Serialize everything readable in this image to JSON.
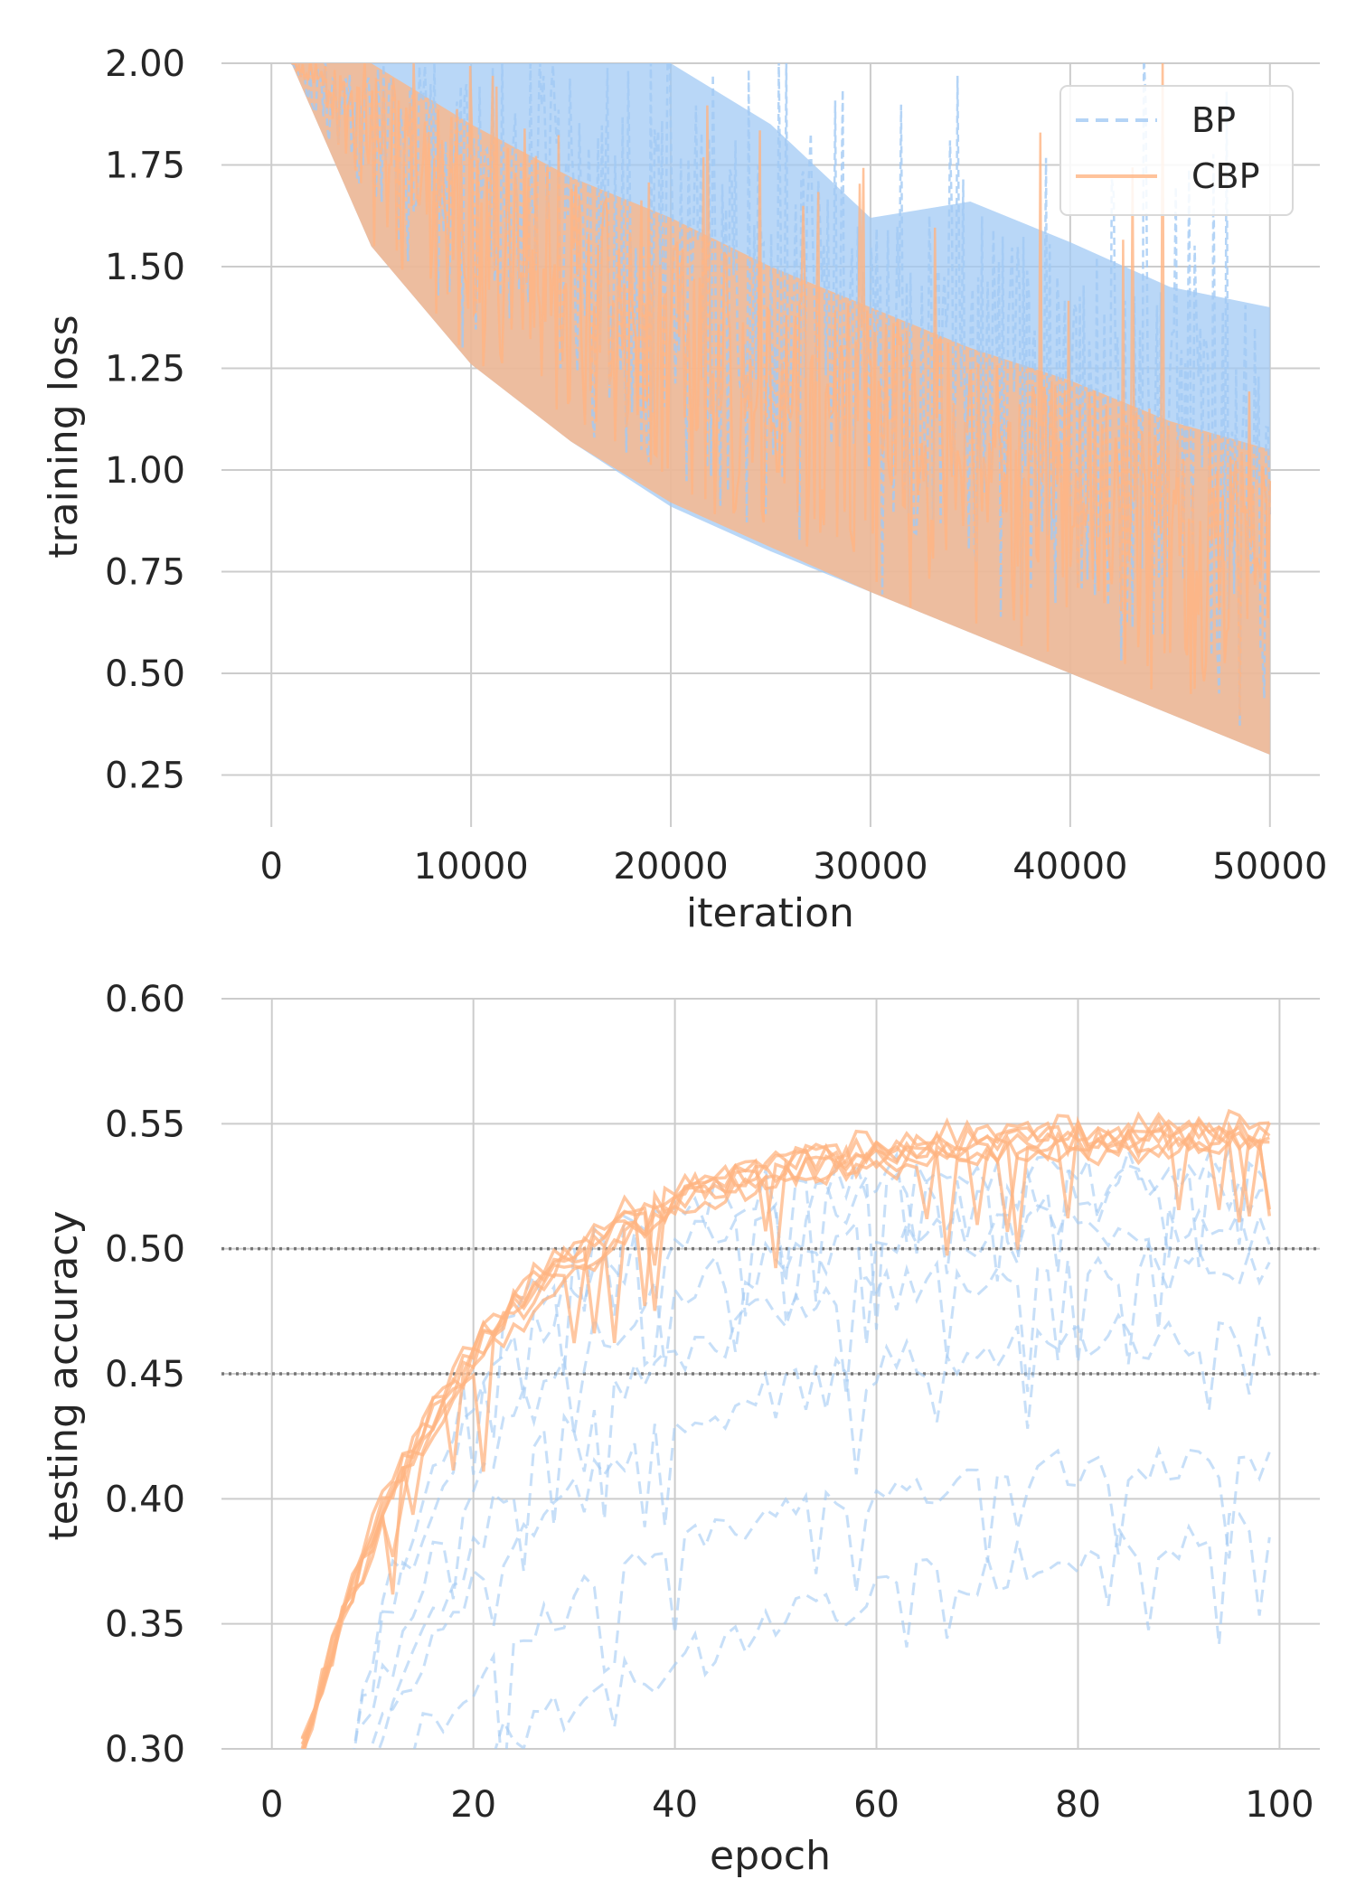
{
  "chart_data": [
    {
      "type": "line",
      "title": "",
      "xlabel": "iteration",
      "ylabel": "training loss",
      "xlim": [
        -2500,
        52500
      ],
      "ylim": [
        0.2,
        2.0
      ],
      "xticks": [
        0,
        10000,
        20000,
        30000,
        40000,
        50000
      ],
      "xtick_labels": [
        "0",
        "10000",
        "20000",
        "30000",
        "40000",
        "50000"
      ],
      "yticks": [
        0.25,
        0.5,
        0.75,
        1.0,
        1.25,
        1.5,
        1.75,
        2.0
      ],
      "ytick_labels": [
        "0.25",
        "0.50",
        "0.75",
        "1.00",
        "1.25",
        "1.50",
        "1.75",
        "2.00"
      ],
      "grid": true,
      "legend": {
        "placement": "top-right",
        "entries": [
          {
            "label": "BP",
            "color": "#a1c9f4",
            "style": "dashed"
          },
          {
            "label": "CBP",
            "color": "#ffb482",
            "style": "solid"
          }
        ]
      },
      "series": [
        {
          "name": "BP",
          "color": "#a1c9f4",
          "style": "dashed",
          "x": [
            1000,
            5000,
            10000,
            15000,
            20000,
            25000,
            30000,
            35000,
            40000,
            45000,
            50000
          ],
          "lower": [
            2.0,
            1.55,
            1.26,
            1.07,
            0.91,
            0.8,
            0.7,
            0.6,
            0.5,
            0.4,
            0.3
          ],
          "upper": [
            2.0,
            2.0,
            2.0,
            2.0,
            2.0,
            1.85,
            1.62,
            1.66,
            1.56,
            1.45,
            1.4
          ]
        },
        {
          "name": "CBP",
          "color": "#ffb482",
          "style": "solid",
          "x": [
            1000,
            5000,
            10000,
            15000,
            20000,
            25000,
            30000,
            35000,
            40000,
            45000,
            50000
          ],
          "lower": [
            2.0,
            1.55,
            1.26,
            1.07,
            0.92,
            0.81,
            0.7,
            0.6,
            0.5,
            0.4,
            0.3
          ],
          "upper": [
            2.0,
            2.0,
            1.85,
            1.72,
            1.62,
            1.5,
            1.4,
            1.3,
            1.22,
            1.12,
            1.05
          ]
        }
      ]
    },
    {
      "type": "line",
      "title": "",
      "xlabel": "epoch",
      "ylabel": "testing accuracy",
      "xlim": [
        -5,
        104
      ],
      "ylim": [
        0.3,
        0.6
      ],
      "xticks": [
        0,
        20,
        40,
        60,
        80,
        100
      ],
      "xtick_labels": [
        "0",
        "20",
        "40",
        "60",
        "80",
        "100"
      ],
      "yticks": [
        0.3,
        0.35,
        0.4,
        0.45,
        0.5,
        0.55,
        0.6
      ],
      "ytick_labels": [
        "0.30",
        "0.35",
        "0.40",
        "0.45",
        "0.50",
        "0.55",
        "0.60"
      ],
      "grid": true,
      "reference_lines": [
        0.45,
        0.5
      ],
      "reference_line_color": "#777777",
      "series": [
        {
          "name": "BP",
          "color": "#a1c9f4",
          "style": "dashed",
          "run": 1,
          "start": [
            8,
            0.3
          ],
          "plateau": 0.53,
          "rate": 0.085
        },
        {
          "name": "BP",
          "color": "#a1c9f4",
          "style": "dashed",
          "run": 2,
          "start": [
            8,
            0.3
          ],
          "plateau": 0.525,
          "rate": 0.075
        },
        {
          "name": "BP",
          "color": "#a1c9f4",
          "style": "dashed",
          "run": 3,
          "start": [
            9,
            0.3
          ],
          "plateau": 0.51,
          "rate": 0.065
        },
        {
          "name": "BP",
          "color": "#a1c9f4",
          "style": "dashed",
          "run": 4,
          "start": [
            10,
            0.3
          ],
          "plateau": 0.495,
          "rate": 0.055
        },
        {
          "name": "BP",
          "color": "#a1c9f4",
          "style": "dashed",
          "run": 5,
          "start": [
            10,
            0.3
          ],
          "plateau": 0.47,
          "rate": 0.045
        },
        {
          "name": "BP",
          "color": "#a1c9f4",
          "style": "dashed",
          "run": 6,
          "start": [
            14,
            0.3
          ],
          "plateau": 0.42,
          "rate": 0.04
        },
        {
          "name": "BP",
          "color": "#a1c9f4",
          "style": "dashed",
          "run": 7,
          "start": [
            22,
            0.3
          ],
          "plateau": 0.415,
          "rate": 0.02
        },
        {
          "name": "CBP",
          "color": "#ffb482",
          "style": "solid",
          "run": 1,
          "start": [
            3,
            0.3
          ],
          "plateau": 0.548,
          "rate": 0.06
        },
        {
          "name": "CBP",
          "color": "#ffb482",
          "style": "solid",
          "run": 2,
          "start": [
            3,
            0.3
          ],
          "plateau": 0.545,
          "rate": 0.058
        },
        {
          "name": "CBP",
          "color": "#ffb482",
          "style": "solid",
          "run": 3,
          "start": [
            3,
            0.3
          ],
          "plateau": 0.55,
          "rate": 0.062
        },
        {
          "name": "CBP",
          "color": "#ffb482",
          "style": "solid",
          "run": 4,
          "start": [
            3,
            0.3
          ],
          "plateau": 0.542,
          "rate": 0.057
        },
        {
          "name": "CBP",
          "color": "#ffb482",
          "style": "solid",
          "run": 5,
          "start": [
            3,
            0.3
          ],
          "plateau": 0.547,
          "rate": 0.061
        },
        {
          "name": "CBP",
          "color": "#ffb482",
          "style": "solid",
          "run": 6,
          "start": [
            3,
            0.3
          ],
          "plateau": 0.544,
          "rate": 0.059
        },
        {
          "name": "CBP",
          "color": "#ffb482",
          "style": "solid",
          "run": 7,
          "start": [
            3,
            0.3
          ],
          "plateau": 0.546,
          "rate": 0.06
        }
      ]
    }
  ]
}
